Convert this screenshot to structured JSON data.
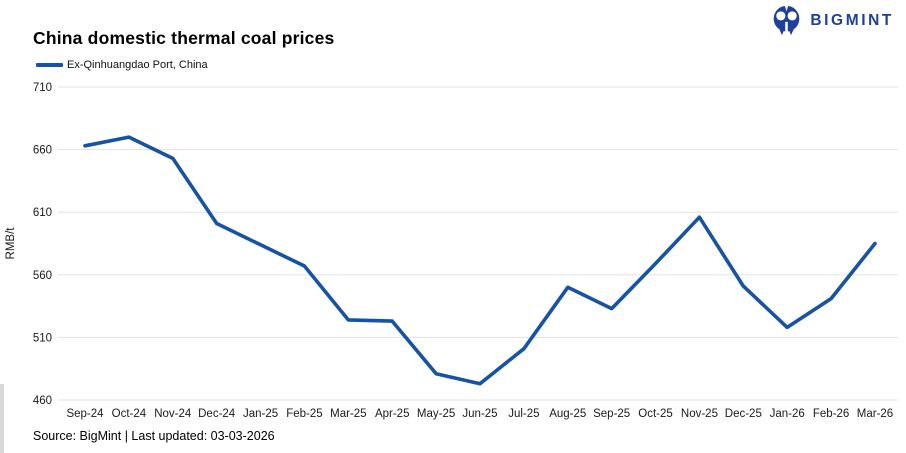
{
  "header": {
    "title": "China domestic thermal coal prices",
    "legend_label": "Ex-Qinhuangdao Port, China"
  },
  "logo": {
    "text": "BIGMINT"
  },
  "footer": {
    "text": "Source: BigMint | Last updated: 03-03-2026"
  },
  "colors": {
    "line": "#1552a8",
    "logo": "#1d3f9e",
    "grid": "#e3e3e3",
    "tick_text": "#1a1a1a"
  },
  "chart_data": {
    "type": "line",
    "title": "China domestic thermal coal prices",
    "categories": [
      "Sep-24",
      "Oct-24",
      "Nov-24",
      "Dec-24",
      "Jan-25",
      "Feb-25",
      "Mar-25",
      "Apr-25",
      "May-25",
      "Jun-25",
      "Jul-25",
      "Aug-25",
      "Sep-25",
      "Oct-25",
      "Nov-25",
      "Dec-25",
      "Jan-26",
      "Feb-26",
      "Mar-26"
    ],
    "series": [
      {
        "name": "Ex-Qinhuangdao Port, China",
        "values": [
          663,
          670,
          653,
          601,
          584,
          567,
          524,
          523,
          481,
          473,
          501,
          550,
          533,
          569,
          606,
          551,
          518,
          541,
          585
        ]
      }
    ],
    "xlabel": "",
    "ylabel": "RMB/t",
    "ylim": [
      460,
      710
    ],
    "ytick_step": 50,
    "grid": "horizontal-only",
    "legend_position": "top-left"
  }
}
